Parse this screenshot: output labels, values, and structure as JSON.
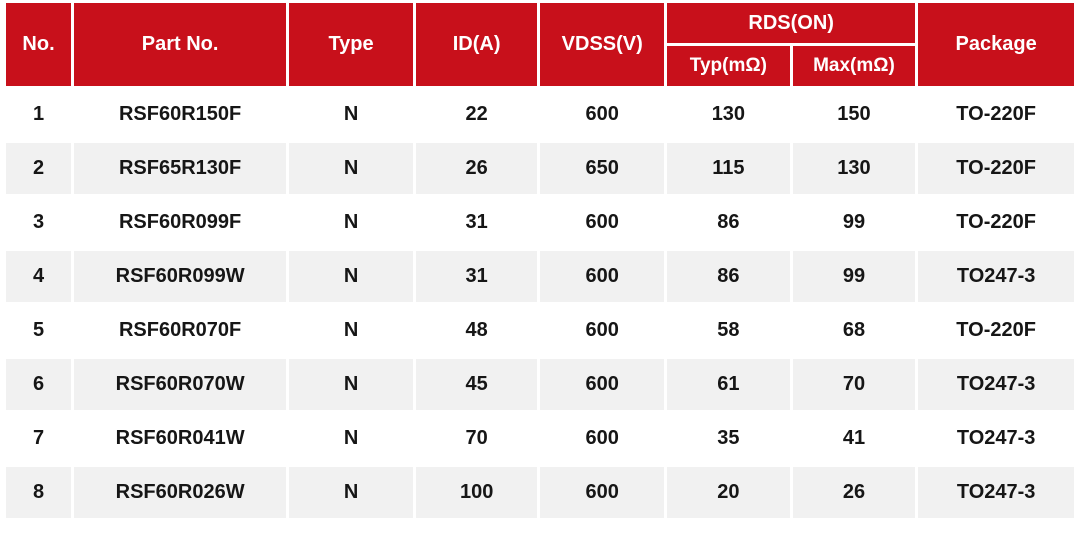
{
  "table": {
    "header": {
      "no": "No.",
      "part_no": "Part No.",
      "type": "Type",
      "id_a": "ID(A)",
      "vdss": "VDSS(V)",
      "rds_on": "RDS(ON)",
      "typ": "Typ(mΩ)",
      "max": "Max(mΩ)",
      "package": "Package"
    },
    "rows": [
      {
        "no": "1",
        "part": "RSF60R150F",
        "type": "N",
        "id": "22",
        "vdss": "600",
        "typ": "130",
        "max": "150",
        "pkg": "TO-220F"
      },
      {
        "no": "2",
        "part": "RSF65R130F",
        "type": "N",
        "id": "26",
        "vdss": "650",
        "typ": "115",
        "max": "130",
        "pkg": "TO-220F"
      },
      {
        "no": "3",
        "part": "RSF60R099F",
        "type": "N",
        "id": "31",
        "vdss": "600",
        "typ": "86",
        "max": "99",
        "pkg": "TO-220F"
      },
      {
        "no": "4",
        "part": "RSF60R099W",
        "type": "N",
        "id": "31",
        "vdss": "600",
        "typ": "86",
        "max": "99",
        "pkg": "TO247-3"
      },
      {
        "no": "5",
        "part": "RSF60R070F",
        "type": "N",
        "id": "48",
        "vdss": "600",
        "typ": "58",
        "max": "68",
        "pkg": "TO-220F"
      },
      {
        "no": "6",
        "part": "RSF60R070W",
        "type": "N",
        "id": "45",
        "vdss": "600",
        "typ": "61",
        "max": "70",
        "pkg": "TO247-3"
      },
      {
        "no": "7",
        "part": "RSF60R041W",
        "type": "N",
        "id": "70",
        "vdss": "600",
        "typ": "35",
        "max": "41",
        "pkg": "TO247-3"
      },
      {
        "no": "8",
        "part": "RSF60R026W",
        "type": "N",
        "id": "100",
        "vdss": "600",
        "typ": "20",
        "max": "26",
        "pkg": "TO247-3"
      }
    ],
    "column_keys": [
      "no",
      "part",
      "type",
      "id",
      "vdss",
      "typ",
      "max",
      "pkg"
    ]
  },
  "colors": {
    "header_red": "#C8101B",
    "header_text": "#FFFFFF",
    "cell_text": "#161616",
    "row_bg": "#FFFFFF",
    "row_alt_bg": "#F1F1F1"
  }
}
